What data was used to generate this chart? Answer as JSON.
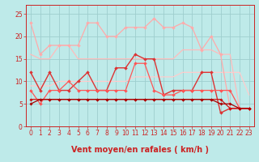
{
  "xlabel": "Vent moyen/en rafales ( km/h )",
  "xlim": [
    -0.5,
    23.5
  ],
  "ylim": [
    0,
    27
  ],
  "yticks": [
    0,
    5,
    10,
    15,
    20,
    25
  ],
  "xticks": [
    0,
    1,
    2,
    3,
    4,
    5,
    6,
    7,
    8,
    9,
    10,
    11,
    12,
    13,
    14,
    15,
    16,
    17,
    18,
    19,
    20,
    21,
    22,
    23
  ],
  "background_color": "#beeae9",
  "grid_color": "#9ecece",
  "lines": [
    {
      "x": [
        0,
        1,
        2,
        3,
        4,
        5,
        6,
        7,
        8,
        9,
        10,
        11,
        12,
        13,
        14,
        15,
        16,
        17,
        18,
        19,
        20,
        21,
        22,
        23
      ],
      "y": [
        23,
        16,
        18,
        18,
        18,
        18,
        23,
        23,
        20,
        20,
        22,
        22,
        22,
        24,
        22,
        22,
        23,
        22,
        17,
        20,
        16,
        4,
        4,
        4
      ],
      "color": "#ffaaaa",
      "linewidth": 0.9,
      "marker": "D",
      "markersize": 2.0
    },
    {
      "x": [
        0,
        1,
        2,
        3,
        4,
        5,
        6,
        7,
        8,
        9,
        10,
        11,
        12,
        13,
        14,
        15,
        16,
        17,
        18,
        19,
        20,
        21,
        22,
        23
      ],
      "y": [
        16,
        15,
        15,
        18,
        18,
        15,
        15,
        15,
        15,
        15,
        15,
        15,
        15,
        15,
        15,
        15,
        17,
        17,
        17,
        17,
        16,
        16,
        4,
        4
      ],
      "color": "#ffbbbb",
      "linewidth": 0.9,
      "marker": null,
      "markersize": 0
    },
    {
      "x": [
        0,
        1,
        2,
        3,
        4,
        5,
        6,
        7,
        8,
        9,
        10,
        11,
        12,
        13,
        14,
        15,
        16,
        17,
        18,
        19,
        20,
        21,
        22,
        23
      ],
      "y": [
        9,
        9,
        9,
        10,
        10,
        10,
        10,
        10,
        10,
        10,
        10,
        11,
        11,
        11,
        11,
        11,
        12,
        12,
        12,
        12,
        12,
        12,
        12,
        7
      ],
      "color": "#ffcccc",
      "linewidth": 0.9,
      "marker": null,
      "markersize": 0
    },
    {
      "x": [
        0,
        1,
        2,
        3,
        4,
        5,
        6,
        7,
        8,
        9,
        10,
        11,
        12,
        13,
        14,
        15,
        16,
        17,
        18,
        19,
        20,
        21,
        22,
        23
      ],
      "y": [
        12,
        8,
        12,
        8,
        8,
        10,
        12,
        8,
        8,
        13,
        13,
        16,
        15,
        15,
        7,
        8,
        8,
        8,
        12,
        12,
        3,
        4,
        4,
        4
      ],
      "color": "#dd3333",
      "linewidth": 1.0,
      "marker": "D",
      "markersize": 2.0
    },
    {
      "x": [
        0,
        1,
        2,
        3,
        4,
        5,
        6,
        7,
        8,
        9,
        10,
        11,
        12,
        13,
        14,
        15,
        16,
        17,
        18,
        19,
        20,
        21,
        22,
        23
      ],
      "y": [
        8,
        5,
        8,
        8,
        10,
        8,
        8,
        8,
        8,
        8,
        8,
        14,
        14,
        8,
        7,
        7,
        8,
        8,
        8,
        8,
        8,
        8,
        4,
        4
      ],
      "color": "#ff5555",
      "linewidth": 0.9,
      "marker": "D",
      "markersize": 2.0
    },
    {
      "x": [
        0,
        1,
        2,
        3,
        4,
        5,
        6,
        7,
        8,
        9,
        10,
        11,
        12,
        13,
        14,
        15,
        16,
        17,
        18,
        19,
        20,
        21,
        22,
        23
      ],
      "y": [
        6,
        6,
        6,
        6,
        6,
        6,
        6,
        6,
        6,
        6,
        6,
        6,
        6,
        6,
        6,
        6,
        6,
        6,
        6,
        6,
        6,
        4,
        4,
        4
      ],
      "color": "#cc1111",
      "linewidth": 0.9,
      "marker": "D",
      "markersize": 1.8
    },
    {
      "x": [
        0,
        1,
        2,
        3,
        4,
        5,
        6,
        7,
        8,
        9,
        10,
        11,
        12,
        13,
        14,
        15,
        16,
        17,
        18,
        19,
        20,
        21,
        22,
        23
      ],
      "y": [
        5,
        6,
        6,
        6,
        6,
        6,
        6,
        6,
        6,
        6,
        6,
        6,
        6,
        6,
        6,
        6,
        6,
        6,
        6,
        6,
        5,
        5,
        4,
        4
      ],
      "color": "#aa0000",
      "linewidth": 0.9,
      "marker": "D",
      "markersize": 1.8
    }
  ],
  "arrow_color": "#cc2222",
  "xlabel_fontsize": 7,
  "tick_fontsize": 5.5,
  "tick_color": "#cc2222",
  "axis_color": "#cc2222"
}
